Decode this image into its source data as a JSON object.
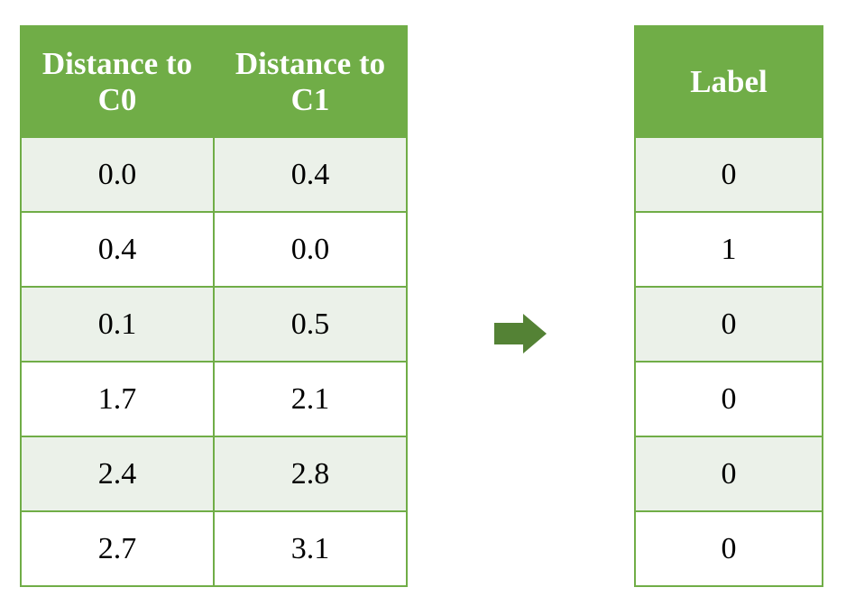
{
  "left_table": {
    "header": [
      "Distance to C0",
      "Distance to C1"
    ],
    "rows": [
      [
        "0.0",
        "0.4"
      ],
      [
        "0.4",
        "0.0"
      ],
      [
        "0.1",
        "0.5"
      ],
      [
        "1.7",
        "2.1"
      ],
      [
        "2.4",
        "2.8"
      ],
      [
        "2.7",
        "3.1"
      ]
    ]
  },
  "right_table": {
    "header": [
      "Label"
    ],
    "rows": [
      [
        "0"
      ],
      [
        "1"
      ],
      [
        "0"
      ],
      [
        "0"
      ],
      [
        "0"
      ],
      [
        "0"
      ]
    ]
  }
}
